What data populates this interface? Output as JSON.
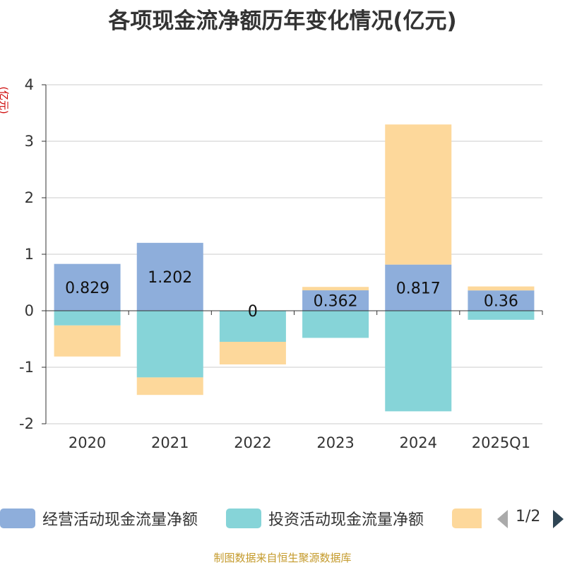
{
  "chart_data": {
    "type": "bar",
    "stacked": true,
    "title": "各项现金流净额历年变化情况(亿元)",
    "ylabel": "(亿元)",
    "categories": [
      "2020",
      "2021",
      "2022",
      "2023",
      "2024",
      "2025Q1"
    ],
    "ylim": [
      -2,
      4
    ],
    "yticks": [
      4,
      3,
      2,
      1,
      0,
      -1,
      -2
    ],
    "grid": true,
    "series": [
      {
        "name": "经营活动现金流量净额",
        "color": "#8eaedb",
        "values": [
          0.829,
          1.202,
          0,
          0.362,
          0.817,
          0.36
        ],
        "data_labels": [
          "0.829",
          "1.202",
          "0",
          "0.362",
          "0.817",
          "0.36"
        ]
      },
      {
        "name": "投资活动现金流量净额",
        "color": "#86d4d8",
        "values": [
          -0.26,
          -1.18,
          -0.55,
          -0.48,
          -1.78,
          -0.16
        ]
      },
      {
        "name": "",
        "color": "#fdd89b",
        "values": [
          -0.55,
          -0.31,
          -0.4,
          0.06,
          2.48,
          0.07
        ]
      }
    ],
    "legend": {
      "position": "bottom",
      "pager": "1/2"
    }
  },
  "source": "制图数据来自恒生聚源数据库"
}
